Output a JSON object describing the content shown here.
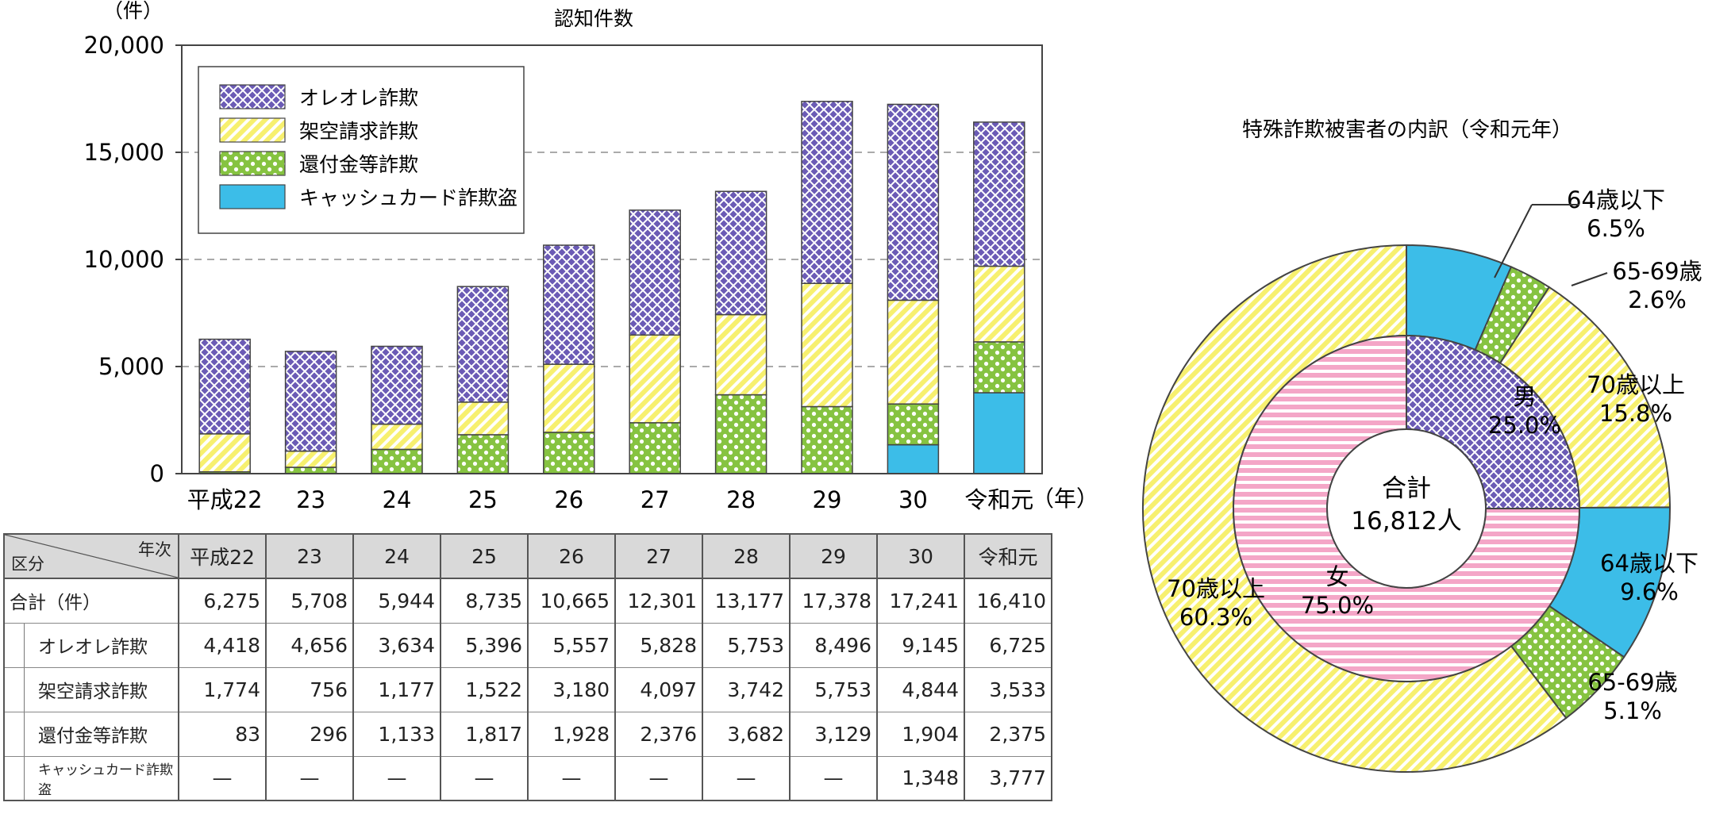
{
  "chart_data": [
    {
      "type": "bar",
      "stacked": true,
      "title": "認知件数",
      "ylabel": "（件）",
      "xunit": "（年）",
      "ylim": [
        0,
        20000
      ],
      "yticks": [
        "0",
        "5,000",
        "10,000",
        "15,000",
        "20,000"
      ],
      "grid": true,
      "legend_position": "top-left",
      "categories": [
        "平成22",
        "23",
        "24",
        "25",
        "26",
        "27",
        "28",
        "29",
        "30",
        "令和元"
      ],
      "series": [
        {
          "name": "キャッシュカード詐欺盗",
          "color": "#3cbde8",
          "pattern": "solid",
          "values": [
            0,
            0,
            0,
            0,
            0,
            0,
            0,
            0,
            1348,
            3777
          ]
        },
        {
          "name": "還付金等詐欺",
          "color": "#86c341",
          "pattern": "dots",
          "values": [
            83,
            296,
            1133,
            1817,
            1928,
            2376,
            3682,
            3129,
            1904,
            2375
          ]
        },
        {
          "name": "架空請求詐欺",
          "color": "#f7f06f",
          "pattern": "stripes",
          "values": [
            1774,
            756,
            1177,
            1522,
            3180,
            4097,
            3742,
            5753,
            4844,
            3533
          ]
        },
        {
          "name": "オレオレ詐欺",
          "color": "#6b5bb5",
          "pattern": "cross",
          "values": [
            4418,
            4656,
            3634,
            5396,
            5557,
            5828,
            5753,
            8496,
            9145,
            6725
          ]
        }
      ],
      "legend_order": [
        "オレオレ詐欺",
        "架空請求詐欺",
        "還付金等詐欺",
        "キャッシュカード詐欺盗"
      ]
    },
    {
      "type": "pie",
      "variant": "donut",
      "title": "特殊詐欺被害者の内訳（令和元年）",
      "center_label": [
        "合計",
        "16,812人"
      ],
      "inner": [
        {
          "label": "男",
          "value": 25.0,
          "value_text": "25.0%",
          "color": "#6b5bb5",
          "pattern": "cross"
        },
        {
          "label": "女",
          "value": 75.0,
          "value_text": "75.0%",
          "color": "#f4a6c7",
          "pattern": "hstripes"
        }
      ],
      "outer": [
        {
          "label": "64歳以下",
          "value": 6.5,
          "value_text": "6.5%",
          "color": "#3cbde8",
          "pattern": "solid"
        },
        {
          "label": "65-69歳",
          "value": 2.6,
          "value_text": "2.6%",
          "color": "#86c341",
          "pattern": "dots"
        },
        {
          "label": "70歳以上",
          "value": 15.8,
          "value_text": "15.8%",
          "color": "#f7f06f",
          "pattern": "stripes"
        },
        {
          "label": "64歳以下",
          "value": 9.6,
          "value_text": "9.6%",
          "color": "#3cbde8",
          "pattern": "solid"
        },
        {
          "label": "65-69歳",
          "value": 5.1,
          "value_text": "5.1%",
          "color": "#86c341",
          "pattern": "dots"
        },
        {
          "label": "70歳以上",
          "value": 60.3,
          "value_text": "60.3%",
          "color": "#f7f06f",
          "pattern": "stripes"
        }
      ]
    }
  ],
  "table": {
    "corner_year": "年次",
    "corner_category": "区分",
    "years": [
      "平成22",
      "23",
      "24",
      "25",
      "26",
      "27",
      "28",
      "29",
      "30",
      "令和元"
    ],
    "rows": [
      {
        "label": "合計（件）",
        "sub": false,
        "values": [
          "6,275",
          "5,708",
          "5,944",
          "8,735",
          "10,665",
          "12,301",
          "13,177",
          "17,378",
          "17,241",
          "16,410"
        ]
      },
      {
        "label": "オレオレ詐欺",
        "sub": true,
        "values": [
          "4,418",
          "4,656",
          "3,634",
          "5,396",
          "5,557",
          "5,828",
          "5,753",
          "8,496",
          "9,145",
          "6,725"
        ]
      },
      {
        "label": "架空請求詐欺",
        "sub": true,
        "values": [
          "1,774",
          "756",
          "1,177",
          "1,522",
          "3,180",
          "4,097",
          "3,742",
          "5,753",
          "4,844",
          "3,533"
        ]
      },
      {
        "label": "還付金等詐欺",
        "sub": true,
        "values": [
          "83",
          "296",
          "1,133",
          "1,817",
          "1,928",
          "2,376",
          "3,682",
          "3,129",
          "1,904",
          "2,375"
        ]
      },
      {
        "label": "キャッシュカード詐欺盗",
        "sub": true,
        "small": true,
        "values": [
          "—",
          "—",
          "—",
          "—",
          "—",
          "—",
          "—",
          "—",
          "1,348",
          "3,777"
        ]
      }
    ]
  }
}
